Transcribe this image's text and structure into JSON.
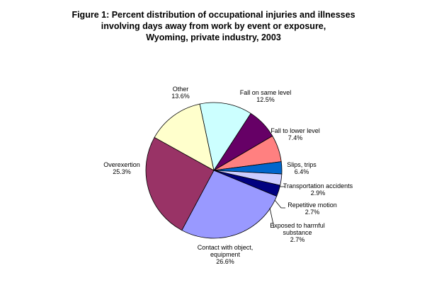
{
  "chart_data": {
    "type": "pie",
    "title_lines": [
      "Figure 1: Percent distribution of occupational injuries and illnesses",
      "involving days away from work by event or exposure,",
      "Wyoming, private industry, 2003"
    ],
    "slices": [
      {
        "name": "Fall on same level",
        "value": 12.5,
        "value_label": "12.5%",
        "color": "#ccffff"
      },
      {
        "name": "Fall to lower level",
        "value": 7.4,
        "value_label": "7.4%",
        "color": "#660066"
      },
      {
        "name": "Slips, trips",
        "value": 6.4,
        "value_label": "6.4%",
        "color": "#ff8080"
      },
      {
        "name": "Transportation accidents",
        "value": 2.9,
        "value_label": "2.9%",
        "color": "#0066cc"
      },
      {
        "name": "Repetitive motion",
        "value": 2.7,
        "value_label": "2.7%",
        "color": "#ccccff"
      },
      {
        "name": "Exposed to harmful substance",
        "value": 2.7,
        "value_label": "2.7%",
        "color": "#000080"
      },
      {
        "name": "Contact with object, equipment",
        "value": 26.6,
        "value_label": "26.6%",
        "color": "#9999ff"
      },
      {
        "name": "Overexertion",
        "value": 25.3,
        "value_label": "25.3%",
        "color": "#993366"
      },
      {
        "name": "Other",
        "value": 13.6,
        "value_label": "13.6%",
        "color": "#ffffcc"
      }
    ]
  }
}
